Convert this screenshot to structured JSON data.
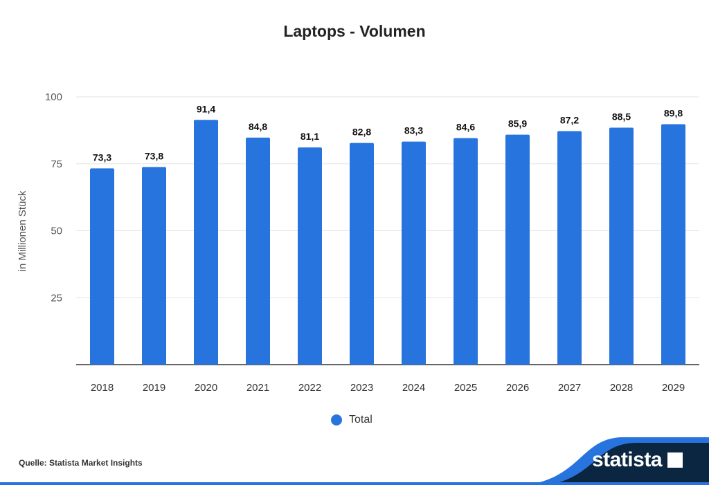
{
  "chart_data": {
    "type": "bar",
    "title": "Laptops - Volumen",
    "ylabel": "in Millionen Stück",
    "xlabel": "",
    "categories": [
      "2018",
      "2019",
      "2020",
      "2021",
      "2022",
      "2023",
      "2024",
      "2025",
      "2026",
      "2027",
      "2028",
      "2029"
    ],
    "values": [
      73.3,
      73.8,
      91.4,
      84.8,
      81.1,
      82.8,
      83.3,
      84.6,
      85.9,
      87.2,
      88.5,
      89.8
    ],
    "value_labels": [
      "73,3",
      "73,8",
      "91,4",
      "84,8",
      "81,1",
      "82,8",
      "83,3",
      "84,6",
      "85,9",
      "87,2",
      "88,5",
      "89,8"
    ],
    "ylim": [
      0,
      100
    ],
    "yticks": [
      25,
      50,
      75,
      100
    ],
    "grid": true,
    "legend": {
      "entries": [
        "Total"
      ],
      "placement": "bottom"
    },
    "colors": {
      "bar": "#2874de"
    }
  },
  "footer": {
    "source": "Quelle: Statista Market Insights",
    "brand": "statista"
  }
}
